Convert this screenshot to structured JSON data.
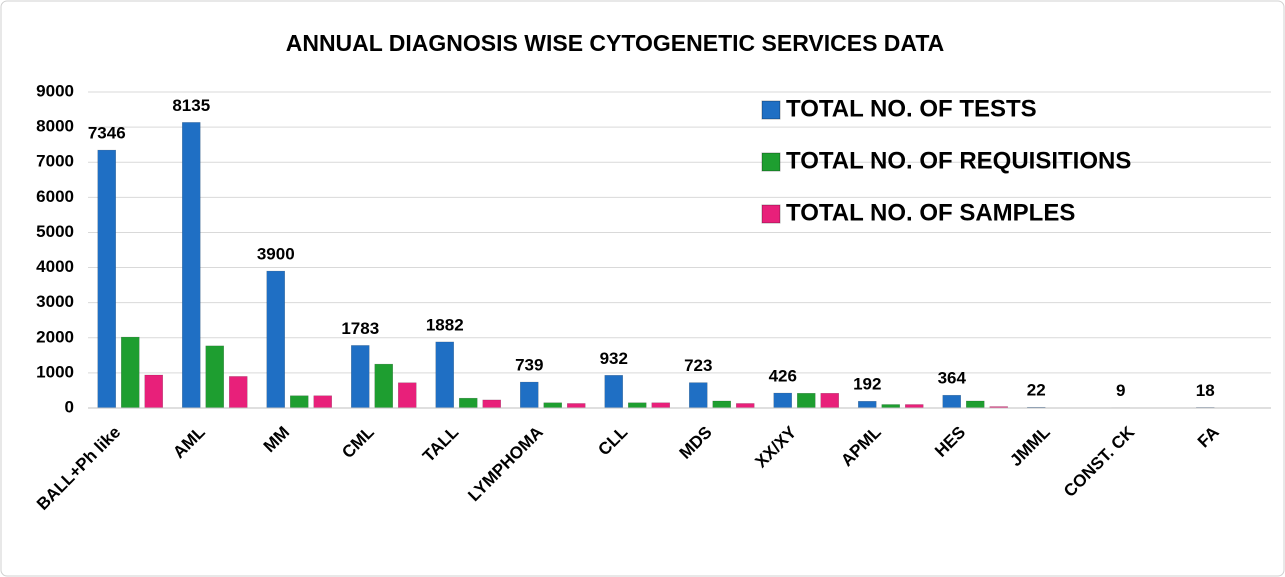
{
  "chart_data": {
    "type": "bar",
    "title": "ANNUAL DIAGNOSIS WISE CYTOGENETIC SERVICES DATA",
    "categories": [
      "BALL+Ph like",
      "AML",
      "MM",
      "CML",
      "TALL",
      "LYMPHOMA",
      "CLL",
      "MDS",
      "XX/XY",
      "APML",
      "HES",
      "JMML",
      "CONST. CK",
      "FA"
    ],
    "series": [
      {
        "name": "TOTAL NO. OF TESTS",
        "color": "#1f6fc4",
        "data_labels": true,
        "values": [
          7346,
          8135,
          3900,
          1783,
          1882,
          739,
          932,
          723,
          426,
          192,
          364,
          22,
          9,
          18
        ]
      },
      {
        "name": "TOTAL NO. OF REQUISITIONS",
        "color": "#1e9e30",
        "data_labels": false,
        "values": [
          2020,
          1770,
          350,
          1250,
          280,
          150,
          150,
          200,
          420,
          100,
          200,
          0,
          0,
          0
        ]
      },
      {
        "name": "TOTAL NO. OF SAMPLES",
        "color": "#e8207a",
        "data_labels": false,
        "values": [
          940,
          900,
          350,
          720,
          230,
          130,
          150,
          130,
          420,
          100,
          40,
          0,
          0,
          0
        ]
      }
    ],
    "ylim": [
      0,
      9000
    ],
    "yticks": [
      0,
      1000,
      2000,
      3000,
      4000,
      5000,
      6000,
      7000,
      8000,
      9000
    ],
    "grid": true,
    "legend": "upper right"
  }
}
